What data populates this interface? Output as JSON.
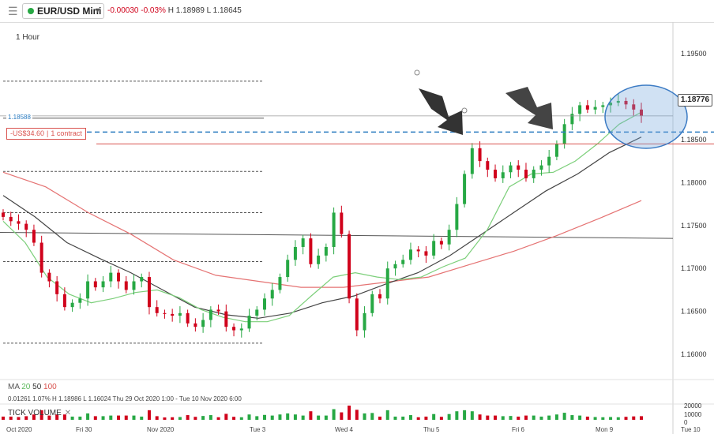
{
  "toolbar": {
    "instrument": "EUR/USD Mini",
    "change": "-0.00030",
    "change_pct": "-0.03%",
    "high": "H 1.18989",
    "low": "L 1.18645"
  },
  "timeframe": "1 Hour",
  "ma_legend": {
    "label": "MA",
    "periods": [
      "20",
      "50",
      "100"
    ],
    "colors": [
      "#5cb85c",
      "#333333",
      "#d9534f"
    ]
  },
  "ohlc_line": "0.01261   1.07%   H 1.18986   L 1.16024   Thu 29 Oct 2020 1:00 - Tue 10 Nov 2020 6:00",
  "volume": {
    "label": "TICK VOLUME"
  },
  "position_label": {
    "pnl": "-US$34.60",
    "size": "1 contract"
  },
  "order_label": "1.18588",
  "current_price": "1.18776",
  "colors": {
    "up": "#27a844",
    "down": "#d0021b",
    "ma20": "#7ccf7a",
    "ma50": "#444444",
    "ma100": "#e57373",
    "order": "#2a7bc0",
    "position": "#d9534f"
  },
  "chart_data": {
    "type": "candlestick",
    "x_tick_labels": [
      "Oct 2020",
      "Fri 30",
      "Nov 2020",
      "Tue 3",
      "Wed 4",
      "Thu 5",
      "Fri 6",
      "Mon 9",
      "Tue 10"
    ],
    "y_tick_labels": [
      "1.19500",
      "1.19000",
      "1.18500",
      "1.18000",
      "1.17500",
      "1.17000",
      "1.16500",
      "1.16000"
    ],
    "ylim": [
      1.1555,
      1.1985
    ],
    "volume_tick_labels": [
      "20000",
      "10000",
      "0"
    ],
    "volume_ylim": [
      0,
      20000
    ],
    "price_path": [
      1.176,
      1.1755,
      1.1752,
      1.1745,
      1.173,
      1.1695,
      1.1685,
      1.167,
      1.1655,
      1.166,
      1.1665,
      1.1685,
      1.1678,
      1.1685,
      1.1695,
      1.1685,
      1.1675,
      1.1685,
      1.169,
      1.1655,
      1.1648,
      1.1647,
      1.1645,
      1.1648,
      1.1636,
      1.1632,
      1.164,
      1.1652,
      1.165,
      1.1632,
      1.1628,
      1.163,
      1.1645,
      1.1652,
      1.1665,
      1.1675,
      1.169,
      1.171,
      1.1725,
      1.1735,
      1.1705,
      1.1715,
      1.1725,
      1.1765,
      1.174,
      1.1665,
      1.1628,
      1.1648,
      1.167,
      1.1665,
      1.17,
      1.1705,
      1.171,
      1.1722,
      1.172,
      1.1715,
      1.1732,
      1.1728,
      1.1745,
      1.1775,
      1.181,
      1.184,
      1.1825,
      1.1815,
      1.1805,
      1.1812,
      1.182,
      1.1815,
      1.1805,
      1.1815,
      1.182,
      1.183,
      1.1845,
      1.1868,
      1.188,
      1.189,
      1.1885,
      1.1888,
      1.189,
      1.1893,
      1.1895,
      1.1891,
      1.1885,
      1.1878
    ],
    "ma20": [
      1.1755,
      1.173,
      1.169,
      1.167,
      1.166,
      1.1665,
      1.1672,
      1.1675,
      1.1666,
      1.1652,
      1.1643,
      1.1638,
      1.1638,
      1.1645,
      1.1668,
      1.169,
      1.1695,
      1.169,
      1.1687,
      1.169,
      1.1702,
      1.1712,
      1.1745,
      1.1795,
      1.181,
      1.1812,
      1.1825,
      1.1845,
      1.1868,
      1.1882
    ],
    "ma50": [
      1.1785,
      1.176,
      1.173,
      1.1712,
      1.1695,
      1.1675,
      1.1655,
      1.1646,
      1.1642,
      1.1648,
      1.166,
      1.1668,
      1.1682,
      1.1695,
      1.1715,
      1.174,
      1.1765,
      1.179,
      1.181,
      1.1835,
      1.1853
    ],
    "ma100": [
      1.1812,
      1.1795,
      1.1765,
      1.174,
      1.171,
      1.1692,
      1.1685,
      1.1678,
      1.1678,
      1.1684,
      1.169,
      1.1705,
      1.172,
      1.1738,
      1.1758,
      1.1779
    ],
    "level_lines": [
      1.1918,
      1.1875,
      1.1813,
      1.1765,
      1.1708,
      1.1613
    ],
    "order_line": 1.18588,
    "position_line": 1.1845,
    "trendline": [
      [
        1.1742,
        1.1735
      ]
    ],
    "grid": true,
    "legend": "bottom-left"
  }
}
